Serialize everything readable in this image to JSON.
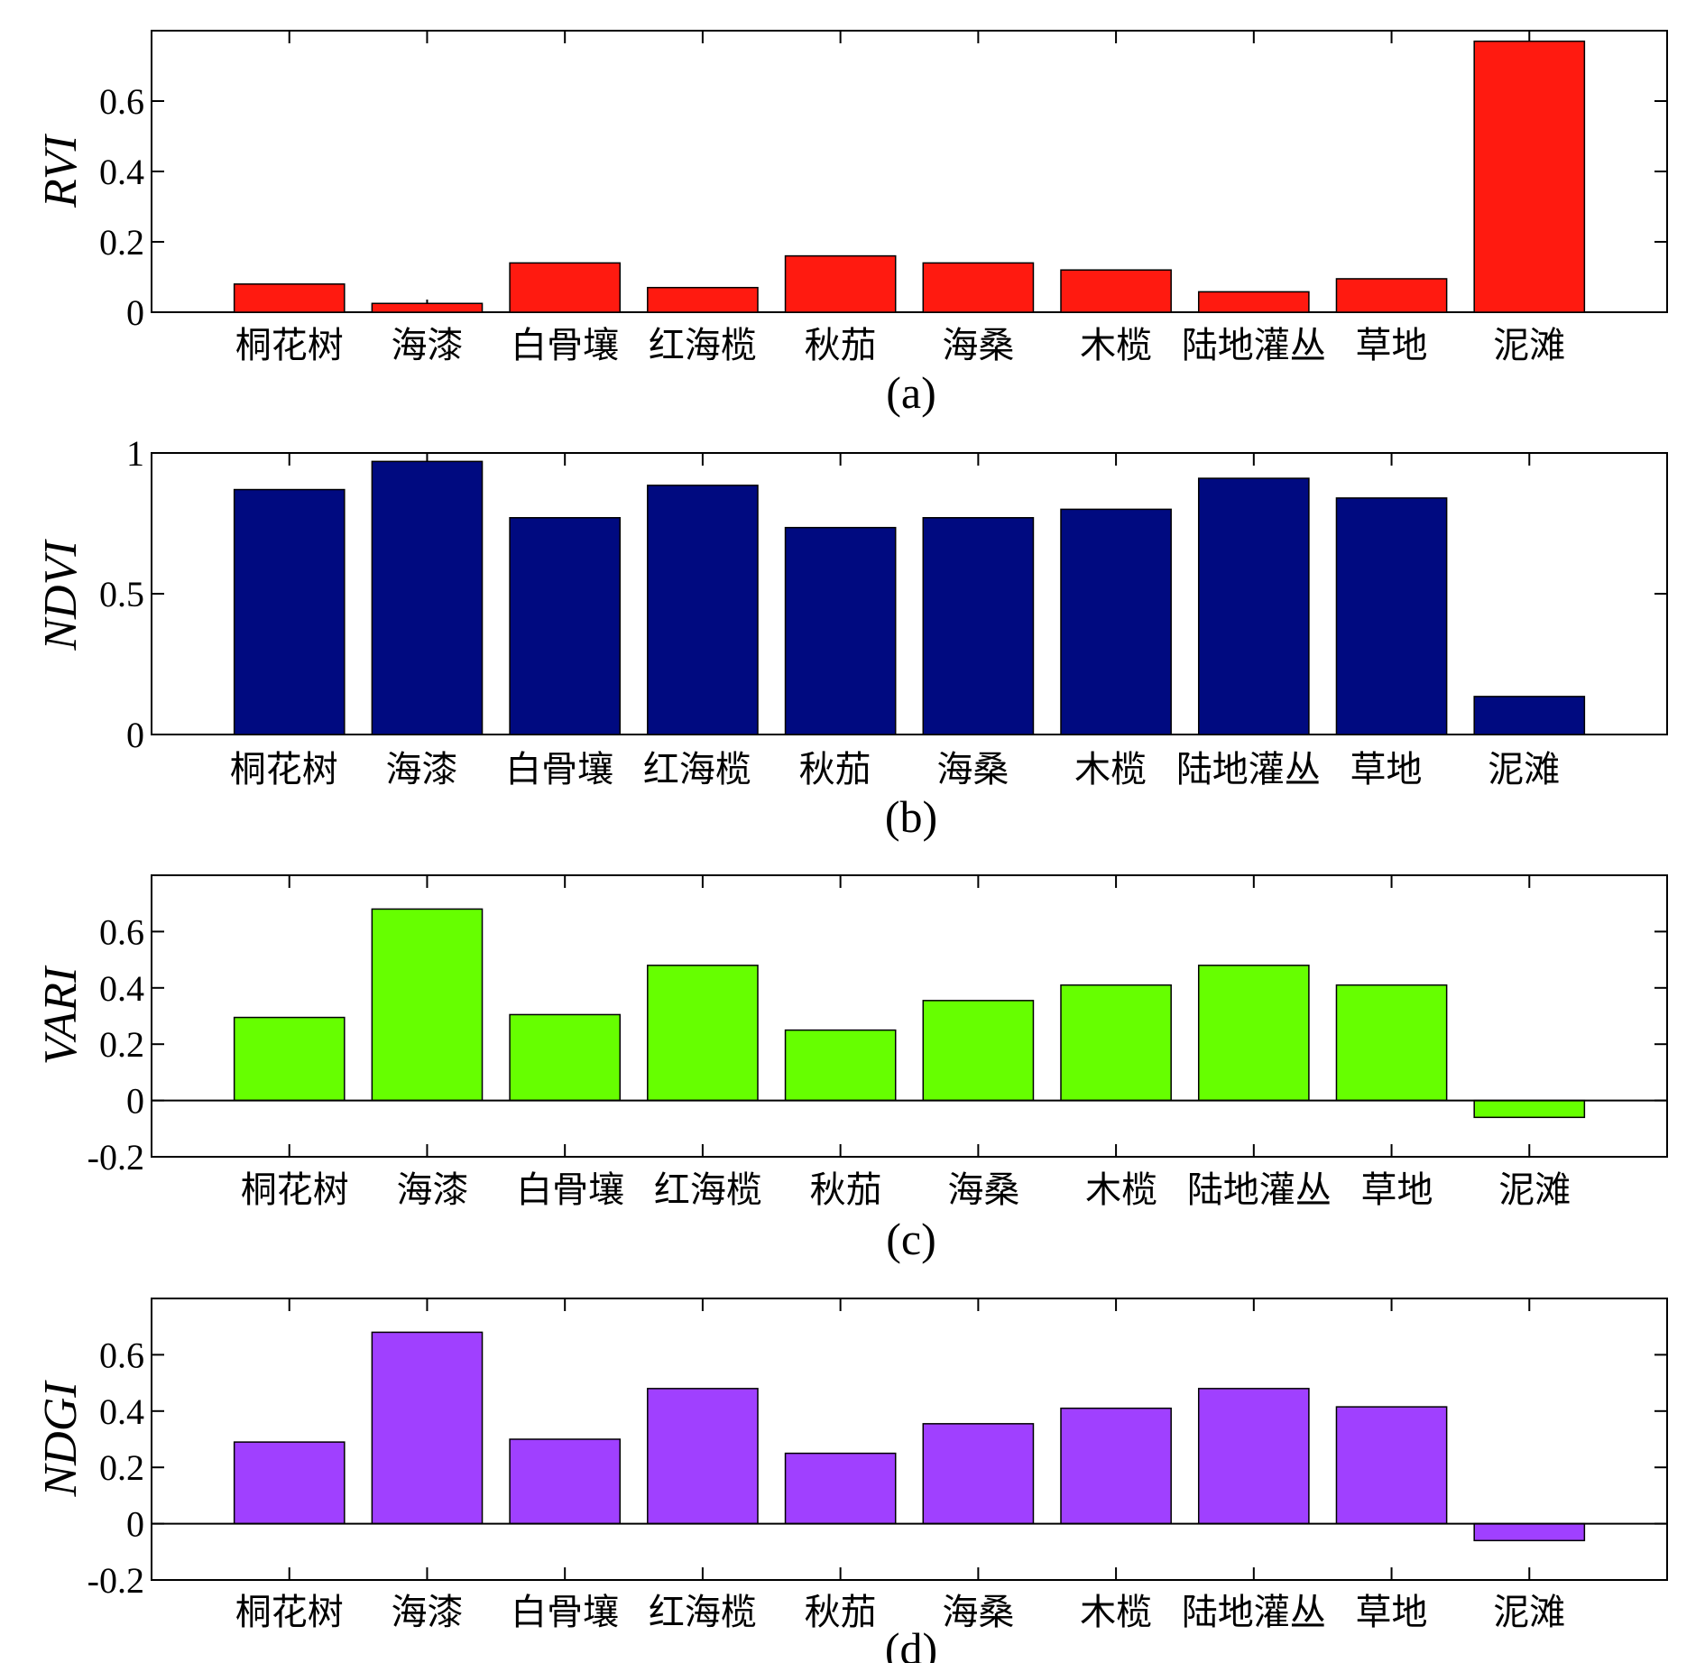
{
  "chart_data": [
    {
      "type": "bar",
      "panel_label": "(a)",
      "ylabel": "RVI",
      "color": "#ff1a10",
      "categories": [
        "桐花树",
        "海漆",
        "白骨壤",
        "红海榄",
        "秋茄",
        "海桑",
        "木榄",
        "陆地灌丛",
        "草地",
        "泥滩"
      ],
      "values": [
        0.08,
        0.025,
        0.14,
        0.07,
        0.16,
        0.14,
        0.12,
        0.058,
        0.095,
        0.77
      ],
      "ylim": [
        0,
        0.8
      ],
      "yticks": [
        0,
        0.2,
        0.4,
        0.6
      ],
      "ytick_labels": [
        "0",
        "0.2",
        "0.4",
        "0.6"
      ],
      "grid": false
    },
    {
      "type": "bar",
      "panel_label": "(b)",
      "ylabel": "NDVI",
      "color": "#000a80",
      "categories": [
        "桐花树",
        "海漆",
        "白骨壤",
        "红海榄",
        "秋茄",
        "海桑",
        "木榄",
        "陆地灌丛",
        "草地",
        "泥滩"
      ],
      "values": [
        0.87,
        0.97,
        0.77,
        0.885,
        0.735,
        0.77,
        0.8,
        0.91,
        0.84,
        0.135
      ],
      "ylim": [
        0,
        1
      ],
      "yticks": [
        0,
        0.5,
        1
      ],
      "ytick_labels": [
        "0",
        "0.5",
        "1"
      ],
      "grid": false
    },
    {
      "type": "bar",
      "panel_label": "(c)",
      "ylabel": "VARI",
      "color": "#66ff00",
      "categories": [
        "桐花树",
        "海漆",
        "白骨壤",
        "红海榄",
        "秋茄",
        "海桑",
        "木榄",
        "陆地灌丛",
        "草地",
        "泥滩"
      ],
      "values": [
        0.295,
        0.68,
        0.305,
        0.48,
        0.25,
        0.355,
        0.41,
        0.48,
        0.41,
        -0.06
      ],
      "ylim": [
        -0.2,
        0.8
      ],
      "yticks": [
        -0.2,
        0,
        0.2,
        0.4,
        0.6
      ],
      "ytick_labels": [
        "-0.2",
        "0",
        "0.2",
        "0.4",
        "0.6"
      ],
      "grid": false
    },
    {
      "type": "bar",
      "panel_label": "(d)",
      "ylabel": "NDGI",
      "color": "#a040ff",
      "categories": [
        "桐花树",
        "海漆",
        "白骨壤",
        "红海榄",
        "秋茄",
        "海桑",
        "木榄",
        "陆地灌丛",
        "草地",
        "泥滩"
      ],
      "values": [
        0.29,
        0.68,
        0.3,
        0.48,
        0.25,
        0.355,
        0.41,
        0.48,
        0.415,
        -0.06
      ],
      "ylim": [
        -0.2,
        0.8
      ],
      "yticks": [
        -0.2,
        0,
        0.2,
        0.4,
        0.6
      ],
      "ytick_labels": [
        "-0.2",
        "0",
        "0.2",
        "0.4",
        "0.6"
      ],
      "grid": false
    }
  ]
}
